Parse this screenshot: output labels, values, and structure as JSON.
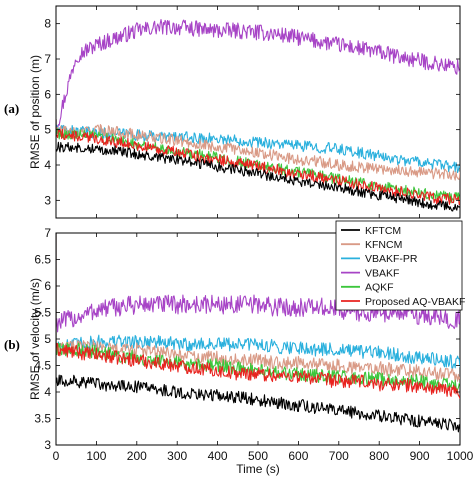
{
  "panel_labels": [
    "(a)",
    "(b)"
  ],
  "legend": {
    "entries": [
      {
        "label": "KFTCM",
        "color": "#000000"
      },
      {
        "label": "KFNCM",
        "color": "#d99a86"
      },
      {
        "label": "VBAKF-PR",
        "color": "#2ab0dd"
      },
      {
        "label": "VBAKF",
        "color": "#a744c6"
      },
      {
        "label": "AQKF",
        "color": "#3cc63c"
      },
      {
        "label": "Proposed AQ-VBAKF",
        "color": "#e8231f"
      }
    ]
  },
  "chart_data": [
    {
      "type": "line",
      "panel": "(a)",
      "title": "",
      "xlabel": "",
      "ylabel": "RMSE of position (m)",
      "xlim": [
        0,
        1000
      ],
      "ylim": [
        2.5,
        8.5
      ],
      "xticks": [
        0,
        100,
        200,
        300,
        400,
        500,
        600,
        700,
        800,
        900,
        1000
      ],
      "yticks": [
        3,
        4,
        5,
        6,
        7,
        8
      ],
      "grid": false,
      "x": [
        0,
        50,
        100,
        150,
        200,
        250,
        300,
        350,
        400,
        450,
        500,
        550,
        600,
        650,
        700,
        750,
        800,
        850,
        900,
        950,
        1000
      ],
      "series": [
        {
          "name": "VBAKF",
          "color": "#a744c6",
          "values": [
            5.0,
            7.1,
            7.4,
            7.6,
            7.8,
            7.9,
            7.9,
            7.85,
            7.8,
            7.8,
            7.75,
            7.7,
            7.6,
            7.5,
            7.4,
            7.3,
            7.2,
            7.05,
            6.95,
            6.85,
            6.75
          ]
        },
        {
          "name": "VBAKF-PR",
          "color": "#2ab0dd",
          "values": [
            5.0,
            4.95,
            4.9,
            4.9,
            4.85,
            4.8,
            4.8,
            4.75,
            4.75,
            4.7,
            4.65,
            4.6,
            4.55,
            4.5,
            4.45,
            4.35,
            4.25,
            4.15,
            4.1,
            4.0,
            3.9
          ]
        },
        {
          "name": "KFNCM",
          "color": "#d99a86",
          "values": [
            5.0,
            4.9,
            5.0,
            4.95,
            4.85,
            4.75,
            4.7,
            4.6,
            4.5,
            4.45,
            4.35,
            4.25,
            4.15,
            4.1,
            4.0,
            3.95,
            3.9,
            3.85,
            3.8,
            3.75,
            3.7
          ]
        },
        {
          "name": "AQKF",
          "color": "#3cc63c",
          "values": [
            4.9,
            4.85,
            4.8,
            4.7,
            4.6,
            4.5,
            4.4,
            4.3,
            4.2,
            4.1,
            4.0,
            3.9,
            3.8,
            3.7,
            3.6,
            3.5,
            3.4,
            3.3,
            3.2,
            3.12,
            3.05
          ]
        },
        {
          "name": "Proposed AQ-VBAKF",
          "color": "#e8231f",
          "values": [
            4.9,
            4.8,
            4.75,
            4.65,
            4.55,
            4.45,
            4.35,
            4.25,
            4.15,
            4.05,
            3.95,
            3.85,
            3.75,
            3.65,
            3.55,
            3.45,
            3.35,
            3.25,
            3.15,
            3.05,
            3.0
          ]
        },
        {
          "name": "KFTCM",
          "color": "#000000",
          "values": [
            4.5,
            4.5,
            4.45,
            4.4,
            4.3,
            4.2,
            4.15,
            4.05,
            3.95,
            3.85,
            3.75,
            3.65,
            3.55,
            3.45,
            3.35,
            3.25,
            3.15,
            3.05,
            2.95,
            2.85,
            2.78
          ]
        }
      ]
    },
    {
      "type": "line",
      "panel": "(b)",
      "title": "",
      "xlabel": "Time (s)",
      "ylabel": "RMSE of velocity (m/s)",
      "xlim": [
        0,
        1000
      ],
      "ylim": [
        3,
        7
      ],
      "xticks": [
        0,
        100,
        200,
        300,
        400,
        500,
        600,
        700,
        800,
        900,
        1000
      ],
      "yticks": [
        3,
        3.5,
        4,
        4.5,
        5,
        5.5,
        6,
        6.5,
        7
      ],
      "grid": false,
      "x": [
        0,
        50,
        100,
        150,
        200,
        250,
        300,
        350,
        400,
        450,
        500,
        550,
        600,
        650,
        700,
        750,
        800,
        850,
        900,
        950,
        1000
      ],
      "series": [
        {
          "name": "VBAKF",
          "color": "#a744c6",
          "values": [
            5.3,
            5.4,
            5.55,
            5.6,
            5.65,
            5.65,
            5.65,
            5.65,
            5.65,
            5.65,
            5.65,
            5.6,
            5.6,
            5.6,
            5.55,
            5.5,
            5.5,
            5.5,
            5.45,
            5.4,
            5.35
          ]
        },
        {
          "name": "VBAKF-PR",
          "color": "#2ab0dd",
          "values": [
            4.9,
            4.9,
            4.95,
            4.95,
            4.95,
            4.95,
            4.9,
            4.9,
            4.9,
            4.9,
            4.9,
            4.85,
            4.85,
            4.8,
            4.8,
            4.75,
            4.75,
            4.7,
            4.65,
            4.6,
            4.55
          ]
        },
        {
          "name": "KFNCM",
          "color": "#d99a86",
          "values": [
            4.8,
            4.85,
            4.85,
            4.8,
            4.8,
            4.75,
            4.7,
            4.65,
            4.65,
            4.6,
            4.6,
            4.55,
            4.55,
            4.5,
            4.5,
            4.45,
            4.45,
            4.4,
            4.4,
            4.35,
            4.3
          ]
        },
        {
          "name": "AQKF",
          "color": "#3cc63c",
          "values": [
            4.8,
            4.8,
            4.75,
            4.7,
            4.65,
            4.6,
            4.55,
            4.5,
            4.5,
            4.45,
            4.4,
            4.35,
            4.35,
            4.3,
            4.3,
            4.25,
            4.25,
            4.2,
            4.2,
            4.15,
            4.1
          ]
        },
        {
          "name": "Proposed AQ-VBAKF",
          "color": "#e8231f",
          "values": [
            4.8,
            4.75,
            4.7,
            4.65,
            4.6,
            4.55,
            4.5,
            4.45,
            4.4,
            4.35,
            4.35,
            4.3,
            4.3,
            4.25,
            4.2,
            4.2,
            4.15,
            4.15,
            4.1,
            4.05,
            4.0
          ]
        },
        {
          "name": "KFTCM",
          "color": "#000000",
          "values": [
            4.2,
            4.2,
            4.15,
            4.1,
            4.1,
            4.05,
            4.0,
            3.95,
            3.95,
            3.9,
            3.85,
            3.8,
            3.75,
            3.7,
            3.65,
            3.6,
            3.55,
            3.5,
            3.45,
            3.4,
            3.35
          ]
        }
      ]
    }
  ]
}
